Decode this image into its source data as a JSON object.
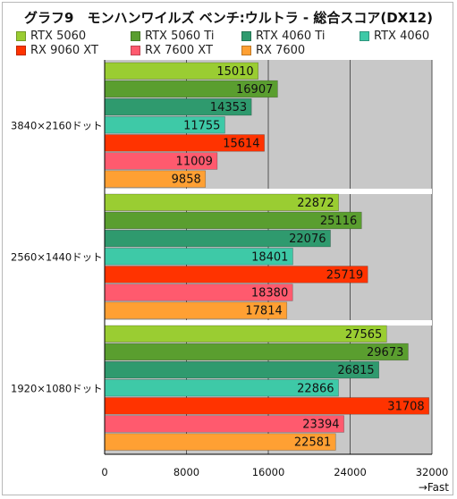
{
  "chart_data": {
    "type": "bar",
    "orientation": "horizontal",
    "title": "グラフ9　モンハンワイルズ ベンチ:ウルトラ - 総合スコア(DX12)",
    "categories": [
      "3840×2160ドット",
      "2560×1440ドット",
      "1920×1080ドット"
    ],
    "series": [
      {
        "name": "RTX 5060",
        "color": "#9acd32",
        "values": [
          15010,
          22872,
          27565
        ]
      },
      {
        "name": "RTX 5060 Ti",
        "color": "#5a9e2f",
        "values": [
          16907,
          25116,
          29673
        ]
      },
      {
        "name": "RTX 4060 Ti",
        "color": "#2f9a6e",
        "values": [
          14353,
          22076,
          26815
        ]
      },
      {
        "name": "RTX 4060",
        "color": "#3ec9a7",
        "values": [
          11755,
          18401,
          22866
        ]
      },
      {
        "name": "RX 9060 XT",
        "color": "#ff3300",
        "values": [
          15614,
          25719,
          31708
        ]
      },
      {
        "name": "RX 7600 XT",
        "color": "#ff5a6e",
        "values": [
          11009,
          18380,
          23394
        ]
      },
      {
        "name": "RX 7600",
        "color": "#ffa033",
        "values": [
          9858,
          17814,
          22581
        ]
      }
    ],
    "xlim": [
      0,
      32000
    ],
    "xticks": [
      "0",
      "8000",
      "16000",
      "24000",
      "32000"
    ],
    "xlabel": "→Fast",
    "grid": true,
    "legend_position": "top"
  },
  "colors": {
    "plot_background": "#c8c8c8",
    "gridline": "#555555",
    "separator": "#ffffff"
  }
}
